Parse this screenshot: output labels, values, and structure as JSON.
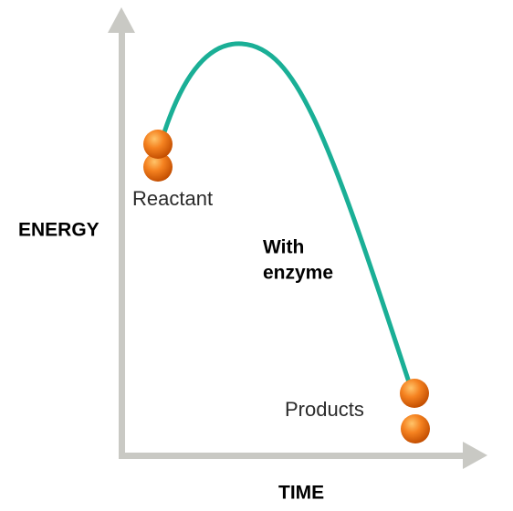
{
  "y_axis_label": "ENERGY",
  "x_axis_label": "TIME",
  "reactant_label": "Reactant",
  "curve_label": [
    "With",
    "enzyme"
  ],
  "products_label": "Products"
}
